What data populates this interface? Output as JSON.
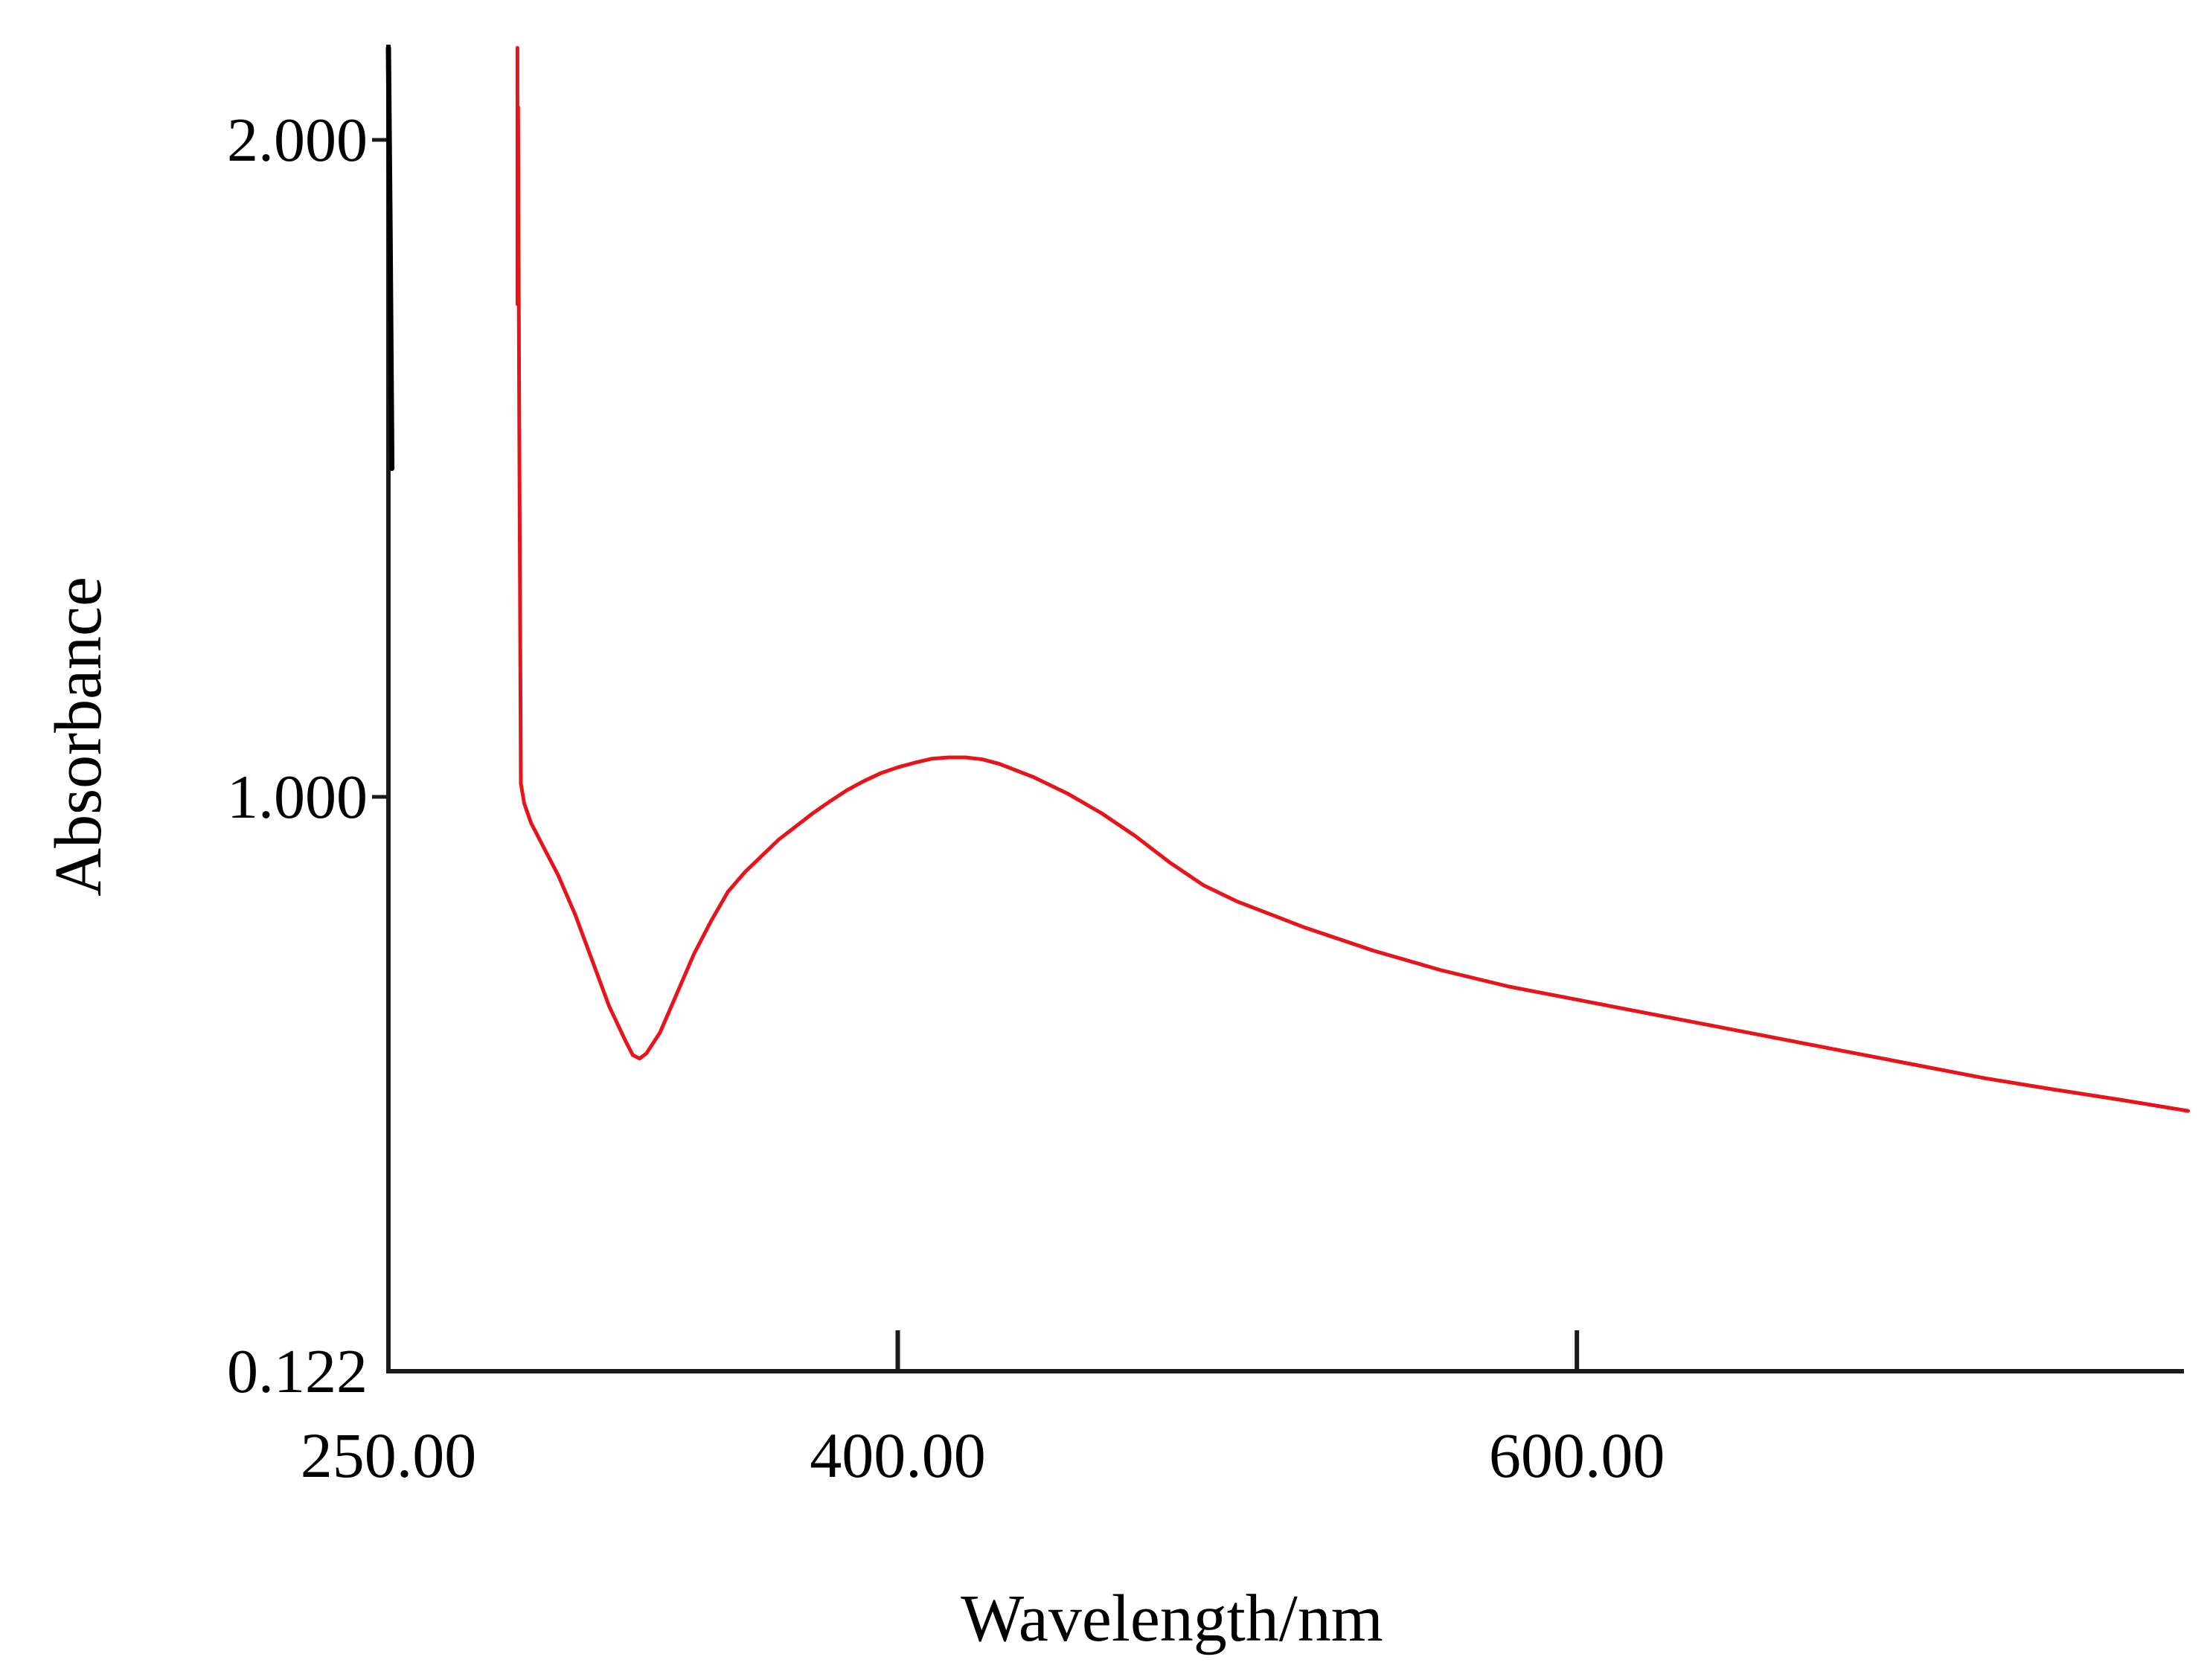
{
  "chart_data": {
    "type": "line",
    "title": "",
    "xlabel": "Wavelength/nm",
    "ylabel": "Absorbance",
    "xlim": [
      250,
      780
    ],
    "ylim": [
      0.122,
      2.14
    ],
    "x_ticks": [
      {
        "value": 250,
        "label": "250.00"
      },
      {
        "value": 400,
        "label": "400.00"
      },
      {
        "value": 600,
        "label": "600.00"
      }
    ],
    "y_ticks": [
      {
        "value": 0.122,
        "label": "0.122"
      },
      {
        "value": 1.0,
        "label": "1.000"
      },
      {
        "value": 2.0,
        "label": "2.000"
      }
    ],
    "grid": false,
    "legend": "none",
    "colors": {
      "axis": "#1a1a1a",
      "series_main": "#e8141c",
      "series_edge": "#000000"
    },
    "series": [
      {
        "color": "#e8141c",
        "x": [
          288,
          288,
          288.2,
          288.5,
          289,
          290,
          292,
          295,
          300,
          305,
          310,
          315,
          320,
          322,
          324,
          326,
          330,
          335,
          340,
          345,
          350,
          355,
          360,
          365,
          370,
          375,
          380,
          385,
          390,
          395,
          400,
          405,
          410,
          415,
          420,
          425,
          430,
          440,
          450,
          460,
          470,
          480,
          490,
          500,
          510,
          520,
          540,
          560,
          580,
          600,
          620,
          640,
          660,
          680,
          700,
          720,
          740,
          760,
          780
        ],
        "y": [
          2.14,
          1.75,
          2.05,
          1.6,
          1.02,
          0.99,
          0.96,
          0.93,
          0.88,
          0.82,
          0.75,
          0.68,
          0.625,
          0.605,
          0.6,
          0.608,
          0.64,
          0.7,
          0.76,
          0.81,
          0.855,
          0.885,
          0.91,
          0.935,
          0.955,
          0.975,
          0.993,
          1.01,
          1.024,
          1.036,
          1.045,
          1.052,
          1.058,
          1.06,
          1.06,
          1.057,
          1.05,
          1.03,
          1.005,
          0.975,
          0.94,
          0.9,
          0.865,
          0.84,
          0.82,
          0.8,
          0.765,
          0.735,
          0.71,
          0.69,
          0.67,
          0.65,
          0.63,
          0.61,
          0.59,
          0.57,
          0.553,
          0.537,
          0.52
        ]
      },
      {
        "color": "#000000",
        "x": [
          250,
          250.5,
          251
        ],
        "y": [
          2.14,
          1.85,
          1.5
        ]
      }
    ]
  }
}
